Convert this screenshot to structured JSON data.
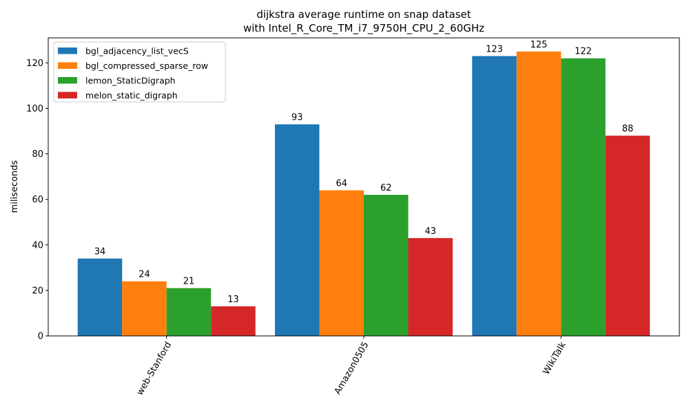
{
  "chart_data": {
    "type": "bar",
    "title": "dijkstra average runtime on snap dataset",
    "subtitle": "with Intel_R_Core_TM_i7_9750H_CPU_2_60GHz",
    "xlabel": "",
    "ylabel": "miliseconds",
    "categories": [
      "web-Stanford",
      "Amazon0505",
      "WikiTalk"
    ],
    "ylim": [
      0,
      131
    ],
    "yticks": [
      0,
      20,
      40,
      60,
      80,
      100,
      120
    ],
    "grid": false,
    "legend_position": "top-left",
    "series": [
      {
        "name": "bgl_adjacency_list_vecS",
        "color": "#1f77b4",
        "values": [
          34,
          93,
          123
        ]
      },
      {
        "name": "bgl_compressed_sparse_row",
        "color": "#ff7f0e",
        "values": [
          24,
          64,
          125
        ]
      },
      {
        "name": "lemon_StaticDigraph",
        "color": "#2ca02c",
        "values": [
          21,
          62,
          122
        ]
      },
      {
        "name": "melon_static_digraph",
        "color": "#d62728",
        "values": [
          13,
          43,
          88
        ]
      }
    ]
  }
}
